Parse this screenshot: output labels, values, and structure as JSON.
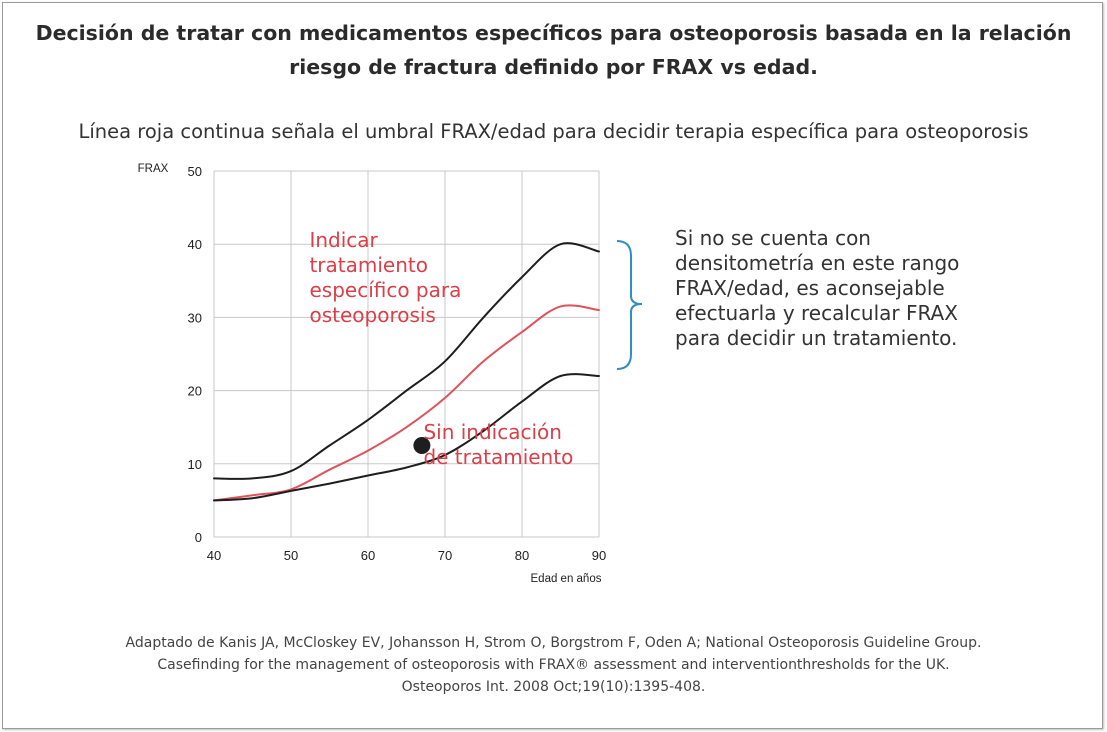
{
  "title_line1": "Decisión de tratar con medicamentos específicos para osteoporosis basada en la relación",
  "title_line2": "riesgo de fractura definido por FRAX vs edad.",
  "subtitle": "Línea roja continua señala el umbral FRAX/edad para decidir terapia específica para osteoporosis",
  "side_note": "Si no se cuenta con densitometría en este rango FRAX/edad, es aconsejable efectuarla y recalcular FRAX para decidir un tratamiento.",
  "source_line1": "Adaptado de Kanis JA, McCloskey EV, Johansson H, Strom O, Borgstrom F, Oden A; National Osteoporosis Guideline Group.",
  "source_line2": "Casefinding for the management of osteoporosis with FRAX® assessment and interventionthresholds for the UK.",
  "source_line3": "Osteoporos Int. 2008 Oct;19(10):1395-408.",
  "colors": {
    "threshold": "#e0525c",
    "bounds": "#1e1e1e",
    "annotation": "#d9404a",
    "bracket": "#2f8fc0",
    "grid": "#c8c8c8"
  },
  "chart_data": {
    "type": "line",
    "title": "",
    "xlabel": "Edad en años",
    "ylabel": "FRAX",
    "xlim": [
      40,
      90
    ],
    "ylim": [
      0,
      50
    ],
    "x_ticks": [
      40,
      50,
      60,
      70,
      80,
      90
    ],
    "y_ticks": [
      0,
      10,
      20,
      30,
      40,
      50
    ],
    "grid": true,
    "x": [
      40,
      45,
      50,
      55,
      60,
      65,
      70,
      75,
      80,
      85,
      90
    ],
    "series": [
      {
        "role": "upper",
        "color": "#1e1e1e",
        "values": [
          8,
          8,
          9,
          12.5,
          16,
          20,
          24,
          30,
          35.5,
          40,
          39
        ]
      },
      {
        "role": "threshold",
        "color": "#e0525c",
        "values": [
          5,
          5.7,
          6.5,
          9.2,
          11.8,
          15,
          19,
          24,
          28,
          31.5,
          31
        ]
      },
      {
        "role": "lower",
        "color": "#1e1e1e",
        "values": [
          5,
          5.3,
          6.3,
          7.3,
          8.4,
          9.5,
          11.2,
          14.5,
          18.5,
          22,
          22
        ]
      }
    ],
    "point": {
      "x": 67,
      "y": 12.5
    },
    "annotations": [
      {
        "text": "Indicar tratamiento específico para osteoporosis",
        "lines": [
          "Indicar",
          "tratamiento",
          "específico para",
          "osteoporosis"
        ],
        "x": 52.4,
        "y": 39.6
      },
      {
        "text": "Sin indicación de tratamiento",
        "lines": [
          "Sin indicación",
          "de tratamiento"
        ],
        "x": 67.2,
        "y": 13.4
      }
    ]
  }
}
